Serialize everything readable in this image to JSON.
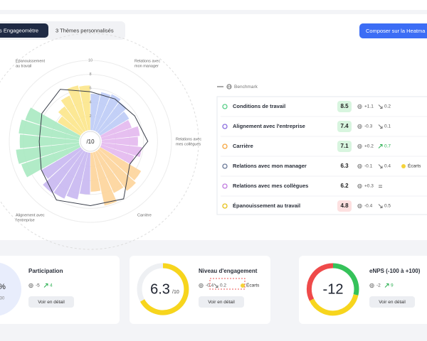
{
  "header": {
    "tabs": [
      "s Engageomètre",
      "3 Thèmes personnalisés"
    ],
    "button": "Composer sur la Heatma"
  },
  "chart_data": {
    "type": "polar",
    "center_label": "/10",
    "rlim": [
      0,
      10
    ],
    "rticks": [
      2,
      4,
      6,
      8,
      10
    ],
    "series": [
      {
        "label": [
          "Relations avec",
          "mon manager"
        ],
        "color": "#bccbf6",
        "values": [
          5.2,
          5.6,
          5.8,
          5.4,
          4.8
        ]
      },
      {
        "label": [
          "Relations avec",
          "mes collègues"
        ],
        "color": "#e3b8ee",
        "values": [
          4.6,
          5.5,
          5.2,
          5.8,
          5.0
        ]
      },
      {
        "label": [
          "Carrière"
        ],
        "color": "#fdd49a",
        "values": [
          6.8,
          7.2,
          6.5,
          7.8,
          5.6
        ]
      },
      {
        "label": [
          "Alignement avec",
          "l'entreprise"
        ],
        "color": "#c8b7f1",
        "values": [
          6.0,
          6.9,
          7.4,
          7.6,
          6.5
        ]
      },
      {
        "color": "#a9e9c1",
        "values": [
          8.8,
          9.1,
          8.5,
          8.7,
          8.2
        ]
      },
      {
        "label": [
          "Épanouissement",
          "au travail"
        ],
        "color": "#fce58a",
        "values": [
          3.8,
          4.6,
          5.6,
          6.6,
          6.4
        ]
      }
    ],
    "benchmark": {
      "name": "Benchmark",
      "color": "#3a3f4b",
      "values": [
        5.5,
        5.4,
        5.7,
        6.6,
        4.9,
        7.9,
        7.6,
        8.1,
        6.5,
        5.7,
        6.4,
        7.0
      ]
    }
  },
  "table": {
    "rows": [
      {
        "name": "Conditions de travail",
        "score": "8.5",
        "delta": "+1.1",
        "trend": "down",
        "change": "0.2"
      },
      {
        "name": "Alignement avec l'entreprise",
        "score": "7.4",
        "delta": "-0.3",
        "trend": "down",
        "change": "0.1"
      },
      {
        "name": "Carrière",
        "score": "7.1",
        "delta": "+0.2",
        "trend": "up",
        "change": "0.7"
      },
      {
        "name": "Relations avec mon manager",
        "score": "6.3",
        "delta": "-0.1",
        "trend": "down",
        "change": "0.4",
        "badge": "Écarts"
      },
      {
        "name": "Relations avec mes collègues",
        "score": "6.2",
        "delta": "+0.3",
        "trend": "equal"
      },
      {
        "name": "Épanouissement au travail",
        "score": "4.8",
        "delta": "-0.4",
        "trend": "down",
        "change": "0.5"
      }
    ]
  },
  "cards": [
    {
      "title": "Participation",
      "value": "%",
      "sub": "30",
      "delta": "-5",
      "trend": "up",
      "change": "4",
      "button": "Voir en détail"
    },
    {
      "title": "Niveau d'engagement",
      "value": "6.3",
      "sub": "/10",
      "delta": "-0.4",
      "trend": "down",
      "change": "0.2",
      "badge": "Écarts",
      "button": "Voir en détail"
    },
    {
      "title": "eNPS (-100 à +100)",
      "value": "-12",
      "delta": "-2",
      "trend": "up",
      "change": "9",
      "button": "Voir en détail"
    }
  ]
}
